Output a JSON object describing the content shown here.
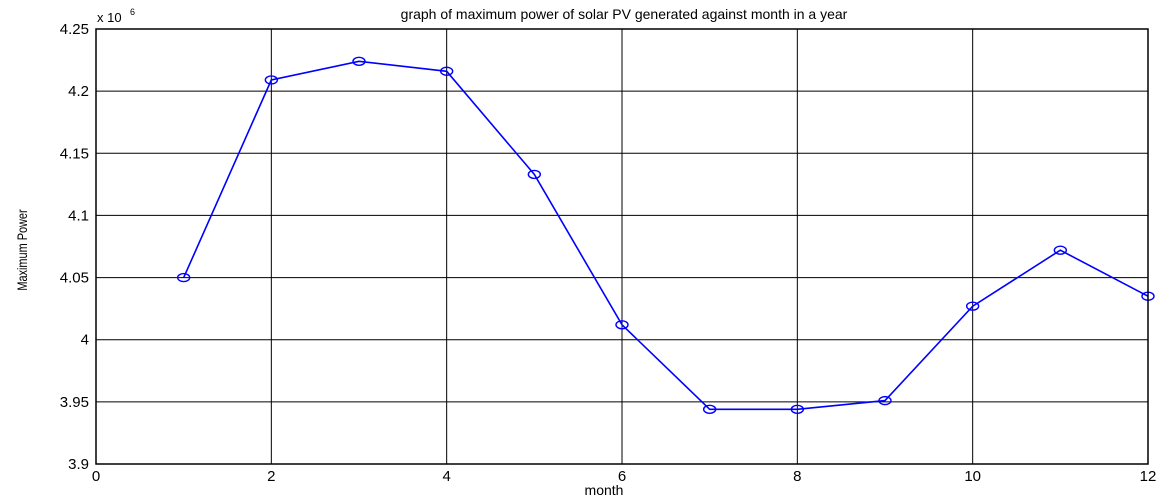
{
  "chart_data": {
    "type": "line",
    "title": "graph of maximum power of solar PV generated against month in a year",
    "xlabel": "month",
    "ylabel": "Maximum Power",
    "y_multiplier_text": "x 10",
    "y_multiplier_exponent": "6",
    "xlim": [
      0,
      12
    ],
    "ylim": [
      3.9,
      4.25
    ],
    "x_ticks": [
      0,
      2,
      4,
      6,
      8,
      10,
      12
    ],
    "x_tick_labels": [
      "0",
      "2",
      "4",
      "6",
      "8",
      "10",
      "12"
    ],
    "y_ticks": [
      3.9,
      3.95,
      4.0,
      4.05,
      4.1,
      4.15,
      4.2,
      4.25
    ],
    "y_tick_labels": [
      "3.9",
      "3.95",
      "4",
      "4.05",
      "4.1",
      "4.15",
      "4.2",
      "4.25"
    ],
    "grid": true,
    "marker": "circle",
    "series": [
      {
        "color": "#0000ff",
        "x": [
          1,
          2,
          3,
          4,
          5,
          6,
          7,
          8,
          9,
          10,
          11,
          12
        ],
        "y": [
          4.05,
          4.209,
          4.224,
          4.216,
          4.133,
          4.012,
          3.944,
          3.944,
          3.951,
          4.027,
          4.072,
          4.035
        ]
      }
    ]
  }
}
